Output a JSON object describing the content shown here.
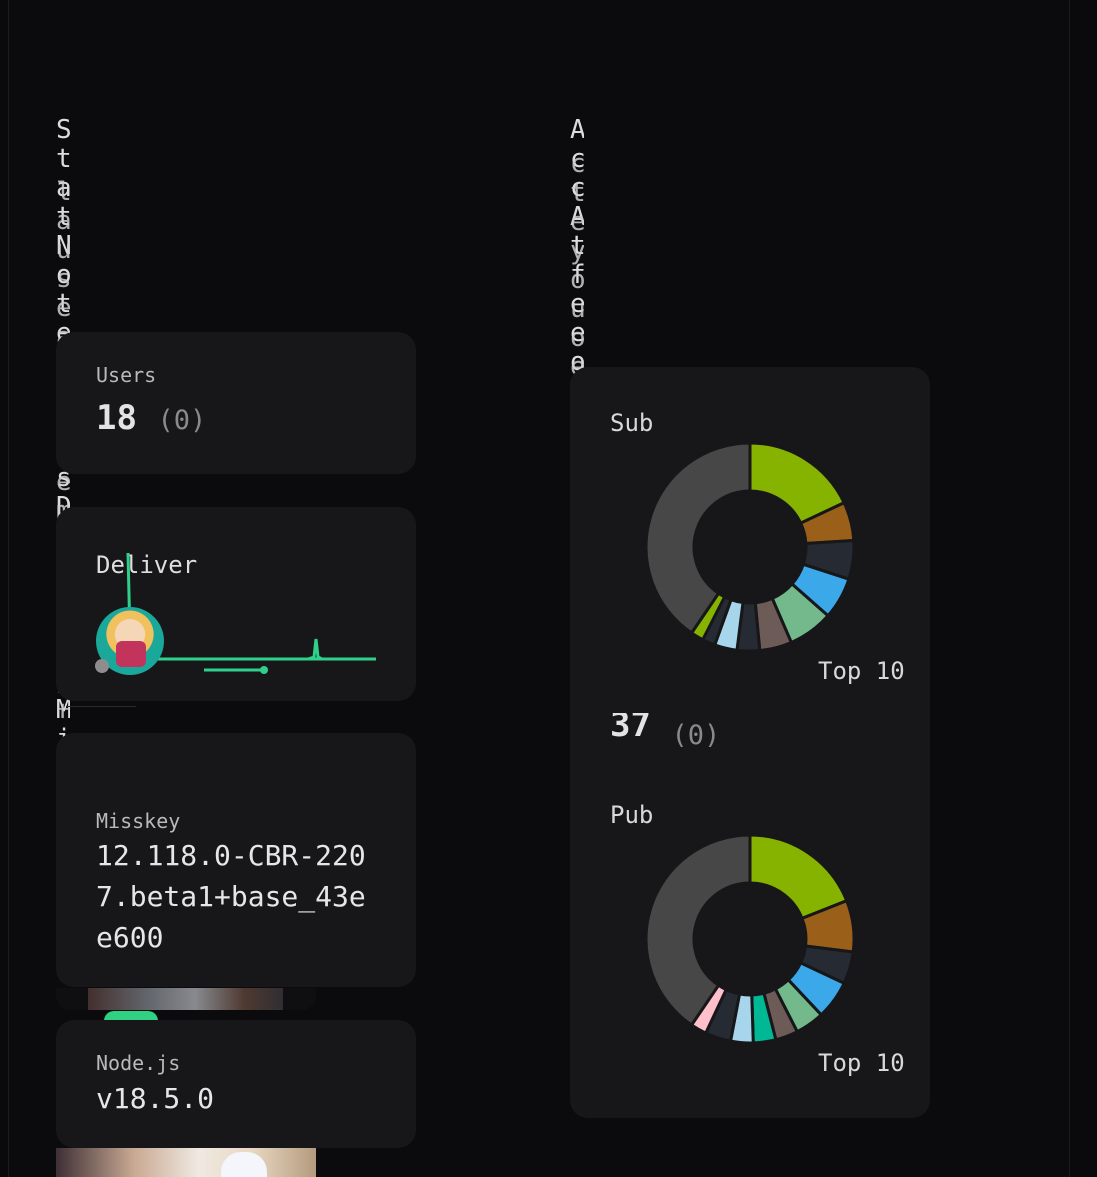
{
  "vertical_text": {
    "left_a": "StatNoteUsersDeliverMisskeyNode",
    "left_b": "lauseagstmemtfoment",
    "right_a": "AccAtfeeou",
    "right_b": "cteyouoe"
  },
  "users_card": {
    "label": "Users",
    "value": "18",
    "delta": "(0)"
  },
  "deliver_card": {
    "label": "Deliver"
  },
  "misskey_card": {
    "label": "Misskey",
    "version": "12.118.0-CBR-2207.beta1+base_43ee600"
  },
  "node_card": {
    "label": "Node.js",
    "version": "v18.5.0"
  },
  "federation": {
    "sub_title": "Sub",
    "pub_title": "Pub",
    "count": "37",
    "count_delta": "(0)",
    "sub_top_label": "Top 10",
    "pub_top_label": "Top 10"
  },
  "chart_data": [
    {
      "type": "pie",
      "title": "Sub",
      "legend": "Top 10",
      "colors": [
        "#86b300",
        "#9a5f19",
        "#262a33",
        "#3ba8ea",
        "#73b98c",
        "#6d5b58",
        "#262a33",
        "#a7d6ec",
        "#262a33",
        "#86b300",
        "#474747"
      ],
      "values": [
        0.18,
        0.06,
        0.06,
        0.065,
        0.07,
        0.05,
        0.035,
        0.035,
        0.02,
        0.02,
        0.405
      ]
    },
    {
      "type": "pie",
      "title": "Pub",
      "legend": "Top 10",
      "colors": [
        "#86b300",
        "#9a5f19",
        "#262a33",
        "#3ba8ea",
        "#73b98c",
        "#6d5b58",
        "#00b894",
        "#a7d6ec",
        "#262a33",
        "#ffc0cb",
        "#474747"
      ],
      "values": [
        0.19,
        0.08,
        0.05,
        0.06,
        0.045,
        0.035,
        0.035,
        0.035,
        0.04,
        0.025,
        0.405
      ]
    }
  ]
}
